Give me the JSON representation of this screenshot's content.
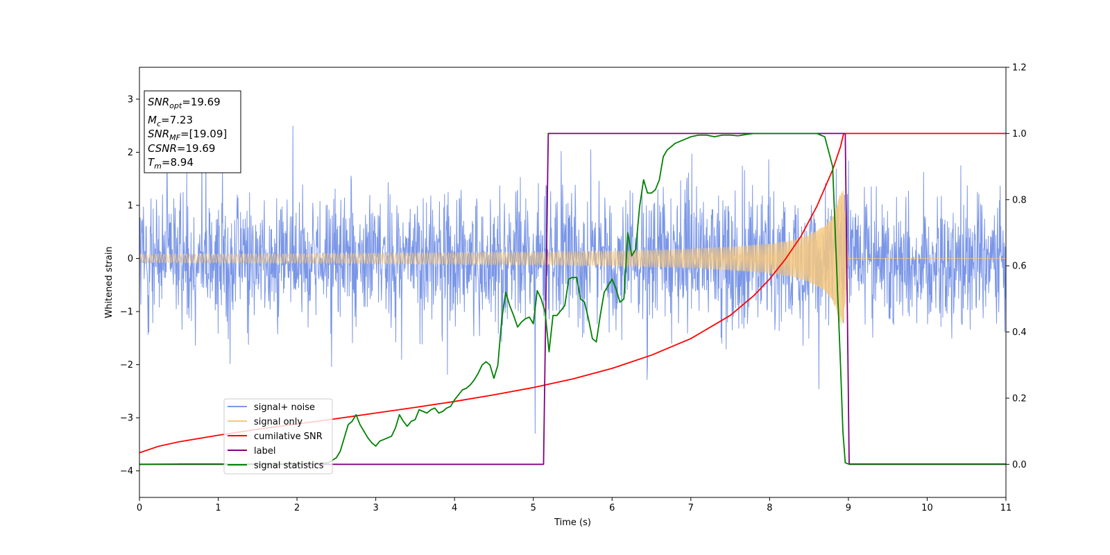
{
  "chart_data": {
    "type": "line",
    "xlabel": "Time (s)",
    "ylabel": "Whitened strain",
    "xlim": [
      0,
      11
    ],
    "ylim": [
      -4.5,
      3.6
    ],
    "y2lim": [
      -0.1,
      1.2
    ],
    "xticks": [
      "0",
      "1",
      "2",
      "3",
      "4",
      "5",
      "6",
      "7",
      "8",
      "9",
      "10",
      "11"
    ],
    "yticks": [
      "−4",
      "−3",
      "−2",
      "−1",
      "0",
      "1",
      "2",
      "3"
    ],
    "y2ticks": [
      "0.0",
      "0.2",
      "0.4",
      "0.6",
      "0.8",
      "1.0",
      "1.2"
    ],
    "grid": false,
    "legend_position": "lower-left",
    "annotation": {
      "snr_opt": {
        "symbol": "SNR",
        "sub": "opt",
        "value": "=19.69"
      },
      "mc": {
        "symbol": "M",
        "sub": "c",
        "value": "=7.23"
      },
      "snr_mf": {
        "symbol": "SNR",
        "sub": "MF",
        "value": "=[19.09]"
      },
      "csnr": {
        "symbol": "CSNR",
        "value": "=19.69"
      },
      "tm": {
        "symbol": "T",
        "sub": "m",
        "value": "=8.94"
      }
    },
    "series": [
      {
        "name": "signal+ noise",
        "axis": "left",
        "color": "#7a96e8",
        "style": "noisy band, amplitude about ±1.6 with spikes to ±3.3",
        "envelope": {
          "x": [
            0,
            11
          ],
          "typical_amplitude": 1.6,
          "peak_amplitude": 3.3
        }
      },
      {
        "name": "signal only",
        "axis": "left",
        "color": "#f5c77e",
        "style": "chirp oscillation with growing amplitude, ending at merger",
        "envelope": {
          "x": [
            0,
            1,
            2,
            3,
            4,
            5,
            6,
            7,
            7.5,
            8,
            8.3,
            8.5,
            8.7,
            8.8,
            8.85,
            8.9,
            8.94,
            9.0,
            11
          ],
          "amplitude": [
            0.08,
            0.085,
            0.09,
            0.1,
            0.11,
            0.12,
            0.14,
            0.18,
            0.22,
            0.28,
            0.35,
            0.45,
            0.62,
            0.8,
            1.0,
            1.25,
            1.3,
            0.0,
            0.0
          ]
        }
      },
      {
        "name": "cumilative SNR",
        "axis": "right",
        "color": "#ff0000",
        "x": [
          0,
          0.25,
          0.5,
          1,
          1.5,
          2,
          2.5,
          3,
          3.5,
          4,
          4.5,
          5,
          5.5,
          6,
          6.5,
          7,
          7.5,
          7.8,
          8,
          8.2,
          8.4,
          8.6,
          8.7,
          8.8,
          8.85,
          8.9,
          8.94,
          9.0,
          11
        ],
        "values": [
          0.035,
          0.055,
          0.068,
          0.088,
          0.106,
          0.122,
          0.138,
          0.155,
          0.172,
          0.19,
          0.21,
          0.232,
          0.258,
          0.29,
          0.33,
          0.38,
          0.45,
          0.51,
          0.56,
          0.62,
          0.69,
          0.78,
          0.835,
          0.89,
          0.925,
          0.96,
          1.0,
          1.0,
          1.0
        ]
      },
      {
        "name": "label",
        "axis": "right",
        "color": "#800080",
        "x": [
          0,
          5.13,
          5.19,
          8.96,
          9.01,
          11
        ],
        "values": [
          0,
          0,
          1,
          1,
          0,
          0
        ]
      },
      {
        "name": "signal statistics",
        "axis": "right",
        "color": "#008000",
        "x": [
          0,
          0.5,
          1,
          1.5,
          2,
          2.2,
          2.4,
          2.5,
          2.55,
          2.6,
          2.65,
          2.7,
          2.75,
          2.8,
          2.85,
          2.9,
          2.95,
          3.0,
          3.05,
          3.1,
          3.15,
          3.2,
          3.25,
          3.3,
          3.35,
          3.4,
          3.45,
          3.5,
          3.55,
          3.6,
          3.65,
          3.7,
          3.75,
          3.8,
          3.85,
          3.9,
          3.95,
          4.0,
          4.05,
          4.1,
          4.15,
          4.2,
          4.25,
          4.3,
          4.35,
          4.4,
          4.45,
          4.5,
          4.55,
          4.6,
          4.65,
          4.7,
          4.75,
          4.8,
          4.85,
          4.9,
          4.95,
          5.0,
          5.05,
          5.1,
          5.15,
          5.2,
          5.25,
          5.3,
          5.35,
          5.4,
          5.45,
          5.5,
          5.55,
          5.6,
          5.65,
          5.7,
          5.75,
          5.8,
          5.85,
          5.9,
          5.95,
          6.0,
          6.05,
          6.1,
          6.15,
          6.2,
          6.25,
          6.3,
          6.35,
          6.4,
          6.45,
          6.5,
          6.55,
          6.6,
          6.65,
          6.7,
          6.75,
          6.8,
          6.9,
          7.0,
          7.1,
          7.2,
          7.3,
          7.4,
          7.5,
          7.6,
          7.7,
          7.8,
          7.9,
          8.0,
          8.2,
          8.4,
          8.6,
          8.7,
          8.8,
          8.85,
          8.9,
          8.93,
          8.96,
          9.0,
          9.5,
          10,
          10.5,
          11
        ],
        "values": [
          0,
          0.001,
          0.001,
          0.001,
          0.001,
          0.002,
          0.005,
          0.02,
          0.04,
          0.08,
          0.12,
          0.13,
          0.15,
          0.12,
          0.1,
          0.08,
          0.065,
          0.055,
          0.07,
          0.075,
          0.08,
          0.085,
          0.11,
          0.15,
          0.13,
          0.115,
          0.13,
          0.135,
          0.165,
          0.16,
          0.155,
          0.165,
          0.17,
          0.155,
          0.16,
          0.17,
          0.175,
          0.195,
          0.21,
          0.225,
          0.23,
          0.24,
          0.255,
          0.275,
          0.3,
          0.31,
          0.3,
          0.26,
          0.3,
          0.44,
          0.52,
          0.48,
          0.45,
          0.415,
          0.43,
          0.44,
          0.445,
          0.425,
          0.525,
          0.5,
          0.46,
          0.34,
          0.45,
          0.45,
          0.465,
          0.48,
          0.56,
          0.565,
          0.565,
          0.5,
          0.49,
          0.44,
          0.38,
          0.37,
          0.45,
          0.52,
          0.54,
          0.56,
          0.53,
          0.49,
          0.5,
          0.7,
          0.63,
          0.65,
          0.78,
          0.86,
          0.82,
          0.82,
          0.83,
          0.86,
          0.93,
          0.95,
          0.96,
          0.97,
          0.98,
          0.99,
          0.995,
          0.995,
          0.99,
          0.995,
          0.995,
          0.993,
          0.997,
          1.0,
          1.0,
          1.0,
          1.0,
          1.0,
          1.0,
          0.99,
          0.9,
          0.6,
          0.3,
          0.1,
          0.005,
          0.001,
          0.001,
          0.001,
          0.001,
          0.001
        ]
      }
    ]
  }
}
